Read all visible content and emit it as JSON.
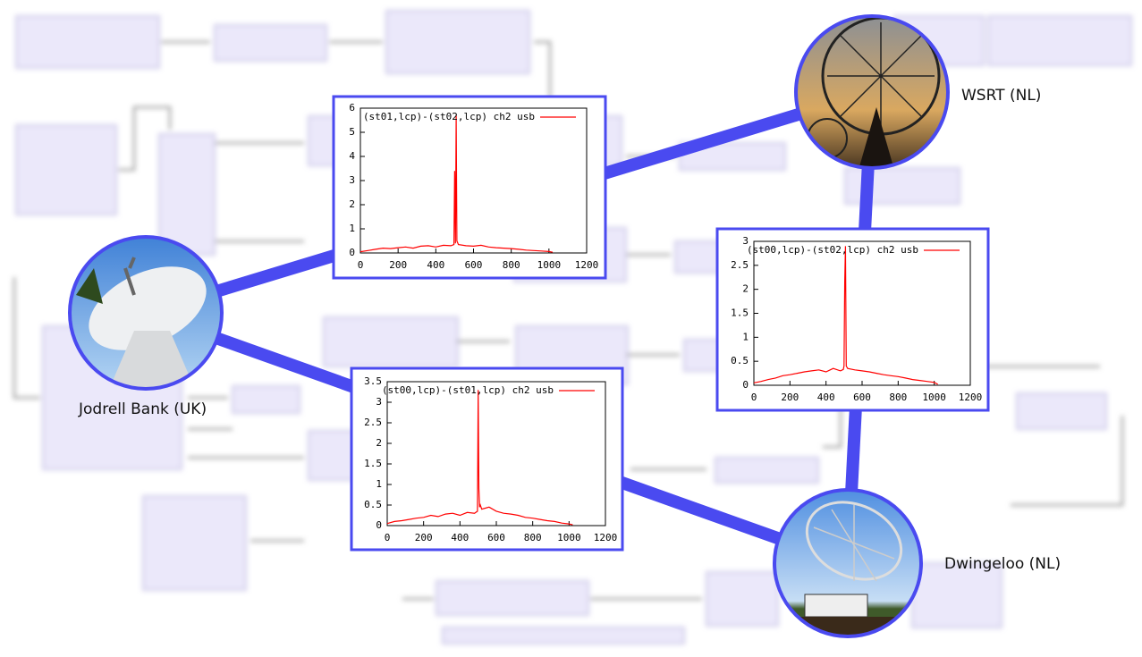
{
  "telescopes": [
    {
      "label": "Jodrell Bank (UK)"
    },
    {
      "label": "WSRT (NL)"
    },
    {
      "label": "Dwingeloo (NL)"
    }
  ],
  "link_color": "#4a4af0",
  "chart_data": [
    {
      "type": "line",
      "legend": "(st01,lcp)-(st02,lcp) ch2 usb",
      "x": [
        0,
        40,
        80,
        120,
        160,
        200,
        240,
        280,
        320,
        360,
        400,
        440,
        480,
        496,
        500,
        504,
        508,
        512,
        520,
        560,
        600,
        640,
        680,
        720,
        760,
        800,
        840,
        880,
        920,
        960,
        1000,
        1020
      ],
      "series": [
        {
          "name": "(st01,lcp)-(st02,lcp) ch2 usb",
          "color": "#ff0000",
          "values": [
            0.05,
            0.1,
            0.15,
            0.2,
            0.18,
            0.22,
            0.25,
            0.2,
            0.28,
            0.3,
            0.25,
            0.32,
            0.3,
            0.35,
            3.4,
            0.4,
            5.7,
            0.5,
            0.35,
            0.3,
            0.28,
            0.32,
            0.25,
            0.22,
            0.2,
            0.18,
            0.15,
            0.12,
            0.1,
            0.08,
            0.06,
            0.03
          ]
        }
      ],
      "xlim": [
        0,
        1200
      ],
      "xticks": [
        0,
        200,
        400,
        600,
        800,
        1000,
        1200
      ],
      "ylim": [
        0,
        6
      ],
      "yticks": [
        0,
        1,
        2,
        3,
        4,
        5,
        6
      ]
    },
    {
      "type": "line",
      "legend": "(st00,lcp)-(st02,lcp) ch2 usb",
      "x": [
        0,
        40,
        80,
        120,
        160,
        200,
        240,
        280,
        320,
        360,
        400,
        440,
        480,
        496,
        500,
        504,
        508,
        512,
        520,
        560,
        600,
        640,
        680,
        720,
        760,
        800,
        840,
        880,
        920,
        960,
        1000,
        1020
      ],
      "series": [
        {
          "name": "(st00,lcp)-(st02,lcp) ch2 usb",
          "color": "#ff0000",
          "values": [
            0.05,
            0.08,
            0.12,
            0.15,
            0.2,
            0.22,
            0.25,
            0.28,
            0.3,
            0.32,
            0.28,
            0.35,
            0.3,
            0.33,
            0.4,
            2.15,
            2.9,
            0.4,
            0.35,
            0.32,
            0.3,
            0.28,
            0.25,
            0.22,
            0.2,
            0.18,
            0.15,
            0.12,
            0.1,
            0.08,
            0.06,
            0.02
          ]
        }
      ],
      "xlim": [
        0,
        1200
      ],
      "xticks": [
        0,
        200,
        400,
        600,
        800,
        1000,
        1200
      ],
      "ylim": [
        0,
        3
      ],
      "yticks": [
        0,
        0.5,
        1,
        1.5,
        2,
        2.5,
        3
      ]
    },
    {
      "type": "line",
      "legend": "(st00,lcp)-(st01,lcp) ch2 usb",
      "x": [
        0,
        40,
        80,
        120,
        160,
        200,
        240,
        280,
        320,
        360,
        400,
        440,
        480,
        496,
        500,
        504,
        508,
        512,
        520,
        560,
        600,
        640,
        680,
        720,
        760,
        800,
        840,
        880,
        920,
        960,
        1000,
        1020
      ],
      "series": [
        {
          "name": "(st00,lcp)-(st01,lcp) ch2 usb",
          "color": "#ff0000",
          "values": [
            0.05,
            0.1,
            0.12,
            0.15,
            0.18,
            0.2,
            0.25,
            0.22,
            0.28,
            0.3,
            0.25,
            0.32,
            0.3,
            0.35,
            3.3,
            0.9,
            0.45,
            0.5,
            0.4,
            0.45,
            0.35,
            0.3,
            0.28,
            0.25,
            0.2,
            0.18,
            0.15,
            0.12,
            0.1,
            0.06,
            0.04,
            0.02
          ]
        }
      ],
      "xlim": [
        0,
        1200
      ],
      "xticks": [
        0,
        200,
        400,
        600,
        800,
        1000,
        1200
      ],
      "ylim": [
        0,
        3.5
      ],
      "yticks": [
        0,
        0.5,
        1,
        1.5,
        2,
        2.5,
        3,
        3.5
      ]
    }
  ]
}
